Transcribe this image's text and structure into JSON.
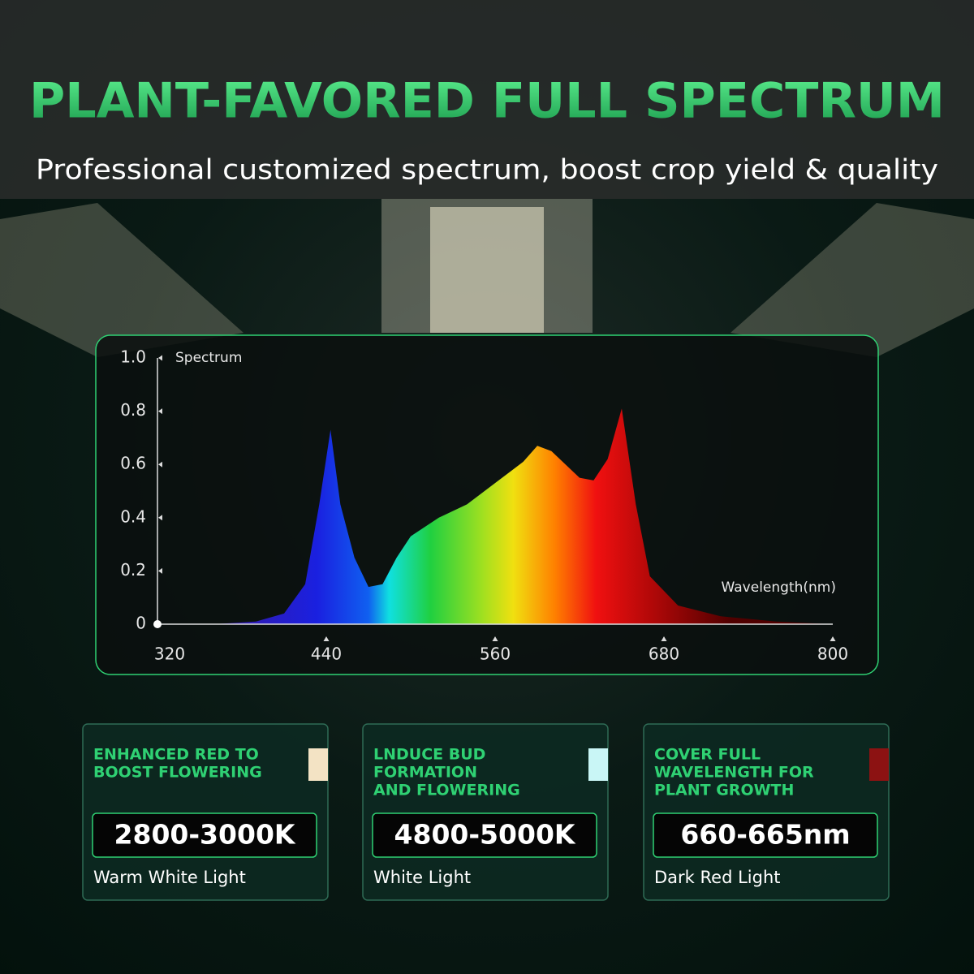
{
  "header": {
    "title": "PLANT-FAVORED FULL SPECTRUM",
    "subtitle": "Professional customized spectrum, boost crop yield & quality"
  },
  "chart_data": {
    "type": "area",
    "x": [
      360,
      390,
      410,
      425,
      435,
      443,
      450,
      460,
      470,
      480,
      490,
      500,
      520,
      540,
      560,
      580,
      590,
      600,
      620,
      630,
      640,
      650,
      660,
      670,
      690,
      720,
      760,
      800
    ],
    "values": [
      0,
      0.01,
      0.04,
      0.15,
      0.45,
      0.73,
      0.45,
      0.25,
      0.14,
      0.15,
      0.25,
      0.33,
      0.4,
      0.45,
      0.53,
      0.61,
      0.67,
      0.65,
      0.55,
      0.54,
      0.62,
      0.81,
      0.45,
      0.18,
      0.07,
      0.03,
      0.01,
      0
    ],
    "y_label": "Spectrum",
    "x_label": "Wavelength(nm)",
    "xlim": [
      320,
      800
    ],
    "xticks": [
      320,
      440,
      560,
      680,
      800
    ],
    "ylim": [
      0,
      1
    ],
    "yticks": [
      0,
      0.2,
      0.4,
      0.6,
      0.8,
      {
        "value": 1,
        "label": "1.0"
      }
    ]
  },
  "cards": [
    {
      "heading": [
        "ENHANCED RED TO",
        "BOOST FLOWERING"
      ],
      "value": "2800-3000K",
      "label": "Warm White Light",
      "color": "#f3e3c4"
    },
    {
      "heading": [
        "LNDUCE BUD",
        "FORMATION",
        "AND FLOWERING"
      ],
      "value": "4800-5000K",
      "label": "White Light",
      "color": "#c9f6f6"
    },
    {
      "heading": [
        "COVER FULL",
        "WAVELENGTH FOR",
        "PLANT GROWTH"
      ],
      "value": "660-665nm",
      "label": "Dark Red Light",
      "color": "#8c1212"
    }
  ]
}
